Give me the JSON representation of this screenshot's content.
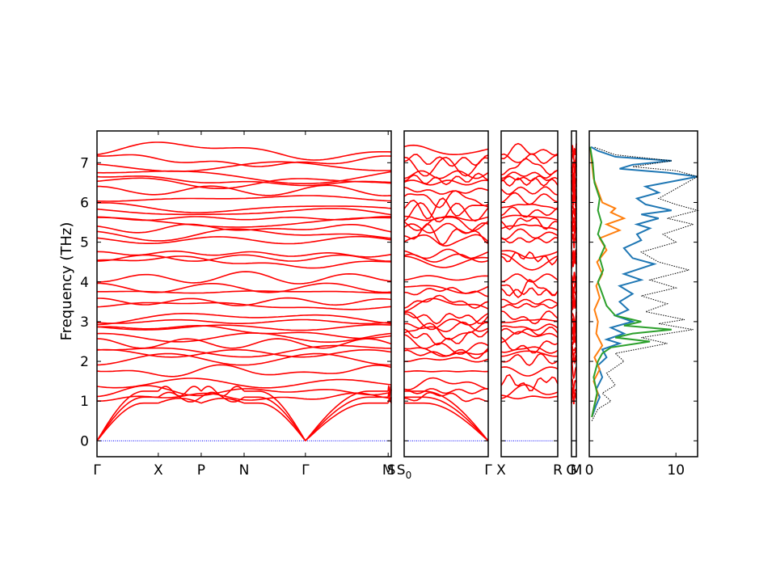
{
  "chart_data": {
    "type": "line",
    "description_free": true,
    "ylabel": "Frequency (THz)",
    "ylim": [
      -0.4,
      7.8
    ],
    "yticks": [
      0,
      1,
      2,
      3,
      4,
      5,
      6,
      7
    ],
    "ytick_labels": [
      "0",
      "1",
      "2",
      "3",
      "4",
      "5",
      "6",
      "7"
    ],
    "band_color": "#ff0000",
    "zero_line_color": "#0000ff",
    "panels": [
      {
        "segment_count": 6,
        "kpoint_labels": [
          "Γ",
          "X",
          "P",
          "N",
          "Γ",
          "M",
          "S"
        ],
        "kpoint_positions": [
          0,
          1,
          1.7,
          2.4,
          3.4,
          4.75,
          4.8
        ]
      },
      {
        "segment_count": 1,
        "kpoint_labels": [
          "S0",
          "Γ"
        ],
        "kpoint_positions": [
          0,
          1
        ]
      },
      {
        "segment_count": 1,
        "kpoint_labels": [
          "X",
          "R"
        ],
        "kpoint_positions": [
          0,
          1
        ]
      },
      {
        "segment_count": 1,
        "kpoint_labels": [
          "G",
          "M"
        ],
        "kpoint_positions": [
          0,
          1
        ]
      }
    ],
    "dos": {
      "xlim": [
        0,
        12.5
      ],
      "xticks": [
        0,
        10
      ],
      "xtick_labels": [
        "0",
        "10"
      ],
      "series": [
        {
          "color": "#1f77b4",
          "points": [
            [
              0.3,
              0.6
            ],
            [
              0.8,
              0.9
            ],
            [
              1.2,
              1.1
            ],
            [
              0.8,
              1.3
            ],
            [
              1.5,
              1.6
            ],
            [
              1.0,
              1.9
            ],
            [
              2.0,
              2.1
            ],
            [
              1.5,
              2.3
            ],
            [
              3.5,
              2.45
            ],
            [
              2.0,
              2.55
            ],
            [
              4.0,
              2.7
            ],
            [
              2.5,
              2.85
            ],
            [
              5.0,
              3.0
            ],
            [
              3.0,
              3.15
            ],
            [
              4.5,
              3.3
            ],
            [
              3.5,
              3.5
            ],
            [
              5.0,
              3.7
            ],
            [
              3.5,
              3.9
            ],
            [
              6.0,
              4.05
            ],
            [
              4.0,
              4.2
            ],
            [
              7.5,
              4.45
            ],
            [
              5.0,
              4.6
            ],
            [
              4.0,
              4.85
            ],
            [
              6.0,
              5.05
            ],
            [
              5.5,
              5.2
            ],
            [
              7.0,
              5.35
            ],
            [
              5.5,
              5.45
            ],
            [
              8.0,
              5.6
            ],
            [
              6.0,
              5.7
            ],
            [
              9.5,
              5.8
            ],
            [
              6.5,
              5.95
            ],
            [
              5.5,
              6.1
            ],
            [
              8.0,
              6.25
            ],
            [
              6.5,
              6.4
            ],
            [
              12.5,
              6.65
            ],
            [
              9.0,
              6.75
            ],
            [
              3.5,
              6.85
            ],
            [
              5.0,
              6.95
            ],
            [
              9.5,
              7.05
            ],
            [
              3.0,
              7.15
            ],
            [
              1.0,
              7.3
            ],
            [
              0.2,
              7.4
            ]
          ]
        },
        {
          "color": "#ff7f0e",
          "points": [
            [
              0.3,
              0.6
            ],
            [
              0.6,
              0.9
            ],
            [
              1.0,
              1.2
            ],
            [
              0.5,
              1.5
            ],
            [
              1.2,
              1.8
            ],
            [
              0.6,
              2.1
            ],
            [
              1.5,
              2.4
            ],
            [
              0.8,
              2.7
            ],
            [
              1.0,
              3.0
            ],
            [
              0.6,
              3.3
            ],
            [
              1.2,
              3.6
            ],
            [
              0.8,
              3.9
            ],
            [
              1.5,
              4.2
            ],
            [
              0.9,
              4.5
            ],
            [
              2.0,
              4.8
            ],
            [
              1.2,
              5.1
            ],
            [
              3.5,
              5.3
            ],
            [
              2.0,
              5.45
            ],
            [
              4.0,
              5.6
            ],
            [
              2.5,
              5.75
            ],
            [
              3.0,
              5.85
            ],
            [
              1.5,
              6.0
            ],
            [
              1.0,
              6.3
            ],
            [
              0.5,
              6.6
            ],
            [
              0.3,
              7.0
            ],
            [
              0.1,
              7.4
            ]
          ]
        },
        {
          "color": "#2ca02c",
          "points": [
            [
              0.3,
              0.6
            ],
            [
              0.6,
              0.9
            ],
            [
              0.9,
              1.2
            ],
            [
              0.5,
              1.6
            ],
            [
              1.0,
              2.0
            ],
            [
              1.5,
              2.2
            ],
            [
              2.5,
              2.35
            ],
            [
              7.0,
              2.5
            ],
            [
              3.0,
              2.6
            ],
            [
              5.0,
              2.7
            ],
            [
              9.5,
              2.8
            ],
            [
              4.0,
              2.9
            ],
            [
              6.0,
              3.0
            ],
            [
              3.0,
              3.15
            ],
            [
              2.0,
              3.4
            ],
            [
              1.5,
              3.7
            ],
            [
              1.0,
              4.0
            ],
            [
              1.6,
              4.3
            ],
            [
              1.2,
              4.6
            ],
            [
              1.8,
              4.9
            ],
            [
              1.0,
              5.2
            ],
            [
              1.4,
              5.5
            ],
            [
              1.0,
              5.8
            ],
            [
              1.2,
              6.1
            ],
            [
              0.6,
              6.5
            ],
            [
              0.4,
              7.0
            ],
            [
              0.1,
              7.4
            ]
          ]
        },
        {
          "color": "#000000",
          "dashed": true,
          "points": [
            [
              0.3,
              0.5
            ],
            [
              1.0,
              0.8
            ],
            [
              2.5,
              1.0
            ],
            [
              1.5,
              1.2
            ],
            [
              3.0,
              1.4
            ],
            [
              2.0,
              1.7
            ],
            [
              4.0,
              2.0
            ],
            [
              3.0,
              2.2
            ],
            [
              9.0,
              2.45
            ],
            [
              6.0,
              2.6
            ],
            [
              12.0,
              2.8
            ],
            [
              8.0,
              2.95
            ],
            [
              11.0,
              3.05
            ],
            [
              6.5,
              3.25
            ],
            [
              9.0,
              3.45
            ],
            [
              6.0,
              3.65
            ],
            [
              10.0,
              3.85
            ],
            [
              7.0,
              4.05
            ],
            [
              11.5,
              4.3
            ],
            [
              8.0,
              4.5
            ],
            [
              6.0,
              4.75
            ],
            [
              10.0,
              5.0
            ],
            [
              8.5,
              5.2
            ],
            [
              12.0,
              5.45
            ],
            [
              9.0,
              5.6
            ],
            [
              12.5,
              5.8
            ],
            [
              10.0,
              5.95
            ],
            [
              8.0,
              6.1
            ],
            [
              12.5,
              6.65
            ],
            [
              10.0,
              6.8
            ],
            [
              5.0,
              6.9
            ],
            [
              9.5,
              7.05
            ],
            [
              3.0,
              7.2
            ],
            [
              0.5,
              7.4
            ]
          ]
        }
      ]
    }
  }
}
